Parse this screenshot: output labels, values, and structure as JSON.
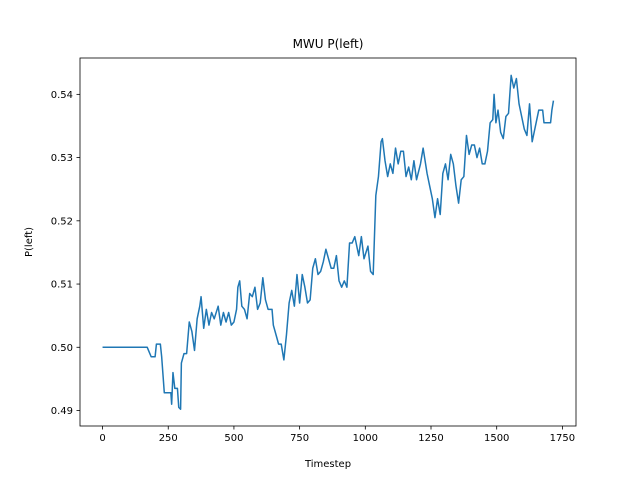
{
  "chart_data": {
    "type": "line",
    "title": "MWU P(left)",
    "x_label": "Timestep",
    "y_label": "P(left)",
    "x": [
      0,
      170,
      175,
      185,
      200,
      205,
      220,
      225,
      235,
      260,
      263,
      268,
      275,
      285,
      290,
      297,
      300,
      310,
      320,
      330,
      340,
      350,
      360,
      370,
      375,
      385,
      395,
      405,
      415,
      425,
      440,
      450,
      460,
      470,
      480,
      490,
      500,
      510,
      515,
      522,
      530,
      540,
      550,
      560,
      570,
      580,
      590,
      600,
      610,
      620,
      630,
      645,
      650,
      660,
      670,
      680,
      690,
      700,
      710,
      720,
      730,
      740,
      750,
      760,
      770,
      780,
      790,
      800,
      810,
      820,
      830,
      840,
      850,
      860,
      870,
      880,
      890,
      900,
      910,
      920,
      930,
      940,
      950,
      960,
      975,
      985,
      995,
      1010,
      1020,
      1030,
      1040,
      1050,
      1060,
      1065,
      1075,
      1085,
      1095,
      1105,
      1115,
      1125,
      1135,
      1145,
      1155,
      1165,
      1175,
      1185,
      1195,
      1210,
      1220,
      1235,
      1245,
      1255,
      1265,
      1275,
      1285,
      1295,
      1305,
      1315,
      1325,
      1335,
      1345,
      1355,
      1365,
      1375,
      1385,
      1395,
      1405,
      1415,
      1425,
      1435,
      1445,
      1455,
      1465,
      1475,
      1485,
      1490,
      1497,
      1505,
      1515,
      1525,
      1535,
      1545,
      1555,
      1565,
      1575,
      1585,
      1595,
      1605,
      1615,
      1625,
      1635,
      1650,
      1660,
      1675,
      1680,
      1705,
      1710,
      1716
    ],
    "series": [
      {
        "color": "#1f77b4",
        "values": [
          0.5,
          0.5,
          0.4995,
          0.4985,
          0.4985,
          0.5005,
          0.5005,
          0.4985,
          0.4928,
          0.4928,
          0.491,
          0.496,
          0.4935,
          0.4935,
          0.4905,
          0.4902,
          0.4975,
          0.499,
          0.499,
          0.504,
          0.5025,
          0.4995,
          0.5045,
          0.5065,
          0.508,
          0.503,
          0.506,
          0.5035,
          0.5055,
          0.5045,
          0.5065,
          0.5035,
          0.5055,
          0.504,
          0.5055,
          0.5035,
          0.504,
          0.506,
          0.5095,
          0.5105,
          0.5065,
          0.506,
          0.5045,
          0.5085,
          0.508,
          0.5095,
          0.506,
          0.507,
          0.511,
          0.5075,
          0.506,
          0.506,
          0.5035,
          0.502,
          0.5005,
          0.5005,
          0.498,
          0.502,
          0.507,
          0.509,
          0.5065,
          0.5115,
          0.507,
          0.5115,
          0.5095,
          0.507,
          0.5075,
          0.5125,
          0.514,
          0.5115,
          0.512,
          0.5135,
          0.5155,
          0.514,
          0.5125,
          0.5125,
          0.5145,
          0.5105,
          0.5095,
          0.5105,
          0.5095,
          0.5165,
          0.5165,
          0.5175,
          0.5145,
          0.5175,
          0.514,
          0.516,
          0.512,
          0.5115,
          0.524,
          0.527,
          0.5325,
          0.533,
          0.5295,
          0.527,
          0.529,
          0.5275,
          0.5315,
          0.529,
          0.531,
          0.531,
          0.527,
          0.5285,
          0.5265,
          0.5295,
          0.5265,
          0.529,
          0.5315,
          0.5275,
          0.5255,
          0.5235,
          0.5205,
          0.5235,
          0.521,
          0.5275,
          0.529,
          0.5265,
          0.5305,
          0.529,
          0.5255,
          0.5228,
          0.5265,
          0.527,
          0.5335,
          0.5305,
          0.532,
          0.532,
          0.53,
          0.5315,
          0.529,
          0.529,
          0.531,
          0.5355,
          0.536,
          0.54,
          0.5355,
          0.5375,
          0.534,
          0.533,
          0.5365,
          0.537,
          0.543,
          0.541,
          0.5425,
          0.5385,
          0.5365,
          0.5345,
          0.5335,
          0.5385,
          0.5325,
          0.5355,
          0.5375,
          0.5375,
          0.5355,
          0.5355,
          0.5375,
          0.539
        ]
      }
    ],
    "xlim": [
      -85.8,
      1801.8
    ],
    "xticks": [
      0,
      250,
      500,
      750,
      1000,
      1250,
      1500,
      1750
    ],
    "ylim": [
      0.48755,
      0.54575
    ],
    "yticks": [
      0.49,
      {
        "value": 0.5,
        "label": "0.50"
      },
      0.51,
      0.52,
      0.53,
      0.54
    ]
  }
}
